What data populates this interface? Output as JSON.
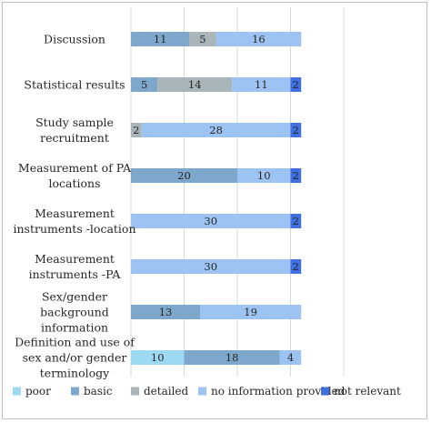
{
  "chart_data": {
    "type": "bar",
    "orientation": "horizontal",
    "stacked": true,
    "categories": [
      "Discussion",
      "Statistical results",
      "Study sample recruitment",
      "Measurement of PA locations",
      "Measurement instruments -location",
      "Measurement instruments -PA",
      "Sex/gender background information",
      "Definition and use of sex and/or gender terminology"
    ],
    "category_lines": [
      [
        "Discussion"
      ],
      [
        "Statistical results"
      ],
      [
        "Study sample",
        "recruitment"
      ],
      [
        "Measurement of PA",
        "locations"
      ],
      [
        "Measurement",
        "instruments -location"
      ],
      [
        "Measurement",
        "instruments -PA"
      ],
      [
        "Sex/gender",
        "background",
        "information"
      ],
      [
        "Definition and use of",
        "sex and/or gender",
        "terminology"
      ]
    ],
    "series": [
      {
        "name": "poor",
        "color": "#9dd9f3",
        "values": [
          0,
          0,
          0,
          0,
          0,
          0,
          0,
          10
        ]
      },
      {
        "name": "basic",
        "color": "#7da7cb",
        "values": [
          11,
          5,
          0,
          20,
          0,
          0,
          13,
          18
        ]
      },
      {
        "name": "detailed",
        "color": "#a9b5b8",
        "values": [
          5,
          14,
          2,
          0,
          0,
          0,
          0,
          0
        ]
      },
      {
        "name": "no information provided",
        "color": "#9cc3f1",
        "values": [
          16,
          11,
          28,
          10,
          30,
          30,
          19,
          4
        ]
      },
      {
        "name": "not relevant",
        "color": "#3f6fe0",
        "values": [
          0,
          2,
          2,
          2,
          2,
          2,
          0,
          0
        ]
      }
    ],
    "xlim": [
      0,
      40
    ],
    "x_gridlines": [
      0,
      10,
      20,
      30,
      40
    ],
    "grid": true,
    "legend_position": "bottom",
    "title": "",
    "xlabel": "",
    "ylabel": ""
  }
}
